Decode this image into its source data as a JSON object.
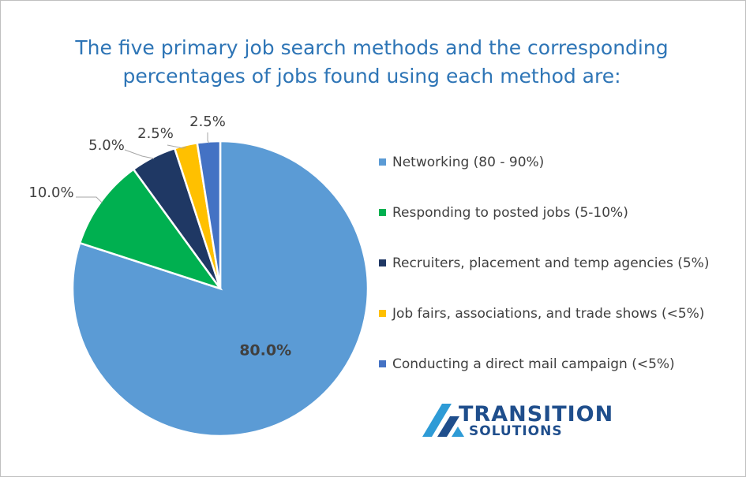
{
  "title": "The five primary job search methods and the corresponding percentages of jobs found using each method are:",
  "chart_data": {
    "type": "pie",
    "title": "The five primary job search methods and the corresponding percentages of jobs found using each method are:",
    "legend_position": "right",
    "slices": [
      {
        "label": "Networking (80 - 90%)",
        "value": 80.0,
        "display": "80.0%",
        "color": "#5b9bd5"
      },
      {
        "label": "Responding to posted jobs (5-10%)",
        "value": 10.0,
        "display": "10.0%",
        "color": "#00b050"
      },
      {
        "label": "Recruiters, placement and temp agencies (5%)",
        "value": 5.0,
        "display": "5.0%",
        "color": "#1f3864"
      },
      {
        "label": "Job fairs, associations, and trade shows (<5%)",
        "value": 2.5,
        "display": "2.5%",
        "color": "#ffc000"
      },
      {
        "label": "Conducting a direct mail campaign (<5%)",
        "value": 2.5,
        "display": "2.5%",
        "color": "#4472c4"
      }
    ]
  },
  "logo": {
    "word1": "TRANSITION",
    "word2": "SOLUTIONS",
    "colors": {
      "dark": "#1f4e8c",
      "light": "#2e9bd6"
    }
  }
}
